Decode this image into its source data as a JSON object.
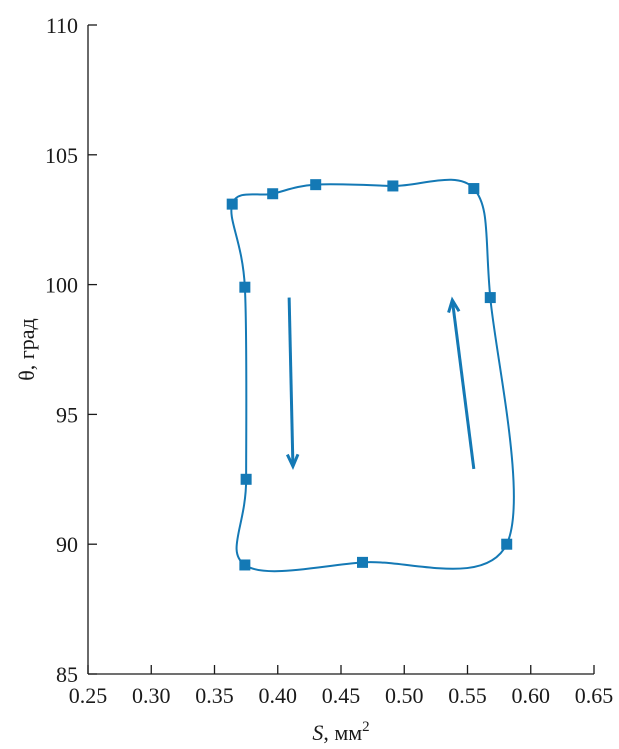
{
  "chart_data": {
    "type": "line",
    "xlabel_italic": "S",
    "xlabel_rest": ", мм",
    "xlabel_sup": "2",
    "ylabel": "θ, град",
    "xlim": [
      0.25,
      0.65
    ],
    "ylim": [
      85,
      110
    ],
    "xticks": [
      "0.25",
      "0.30",
      "0.35",
      "0.40",
      "0.45",
      "0.50",
      "0.55",
      "0.60",
      "0.65"
    ],
    "yticks": [
      "85",
      "90",
      "95",
      "100",
      "105",
      "110"
    ],
    "grid": false,
    "series": [
      {
        "color": "#1479b5",
        "marker": "square",
        "closed_loop": true,
        "x": [
          0.364,
          0.374,
          0.375,
          0.374,
          0.467,
          0.581,
          0.568,
          0.555,
          0.491,
          0.43,
          0.396
        ],
        "y": [
          103.1,
          99.9,
          92.5,
          89.2,
          89.3,
          90.0,
          99.5,
          103.7,
          103.8,
          103.85,
          103.5
        ]
      }
    ],
    "arrows": [
      {
        "direction": "down",
        "from": [
          0.409,
          99.5
        ],
        "to": [
          0.412,
          93.0
        ]
      },
      {
        "direction": "up",
        "from": [
          0.555,
          92.9
        ],
        "to": [
          0.538,
          99.4
        ]
      }
    ]
  }
}
